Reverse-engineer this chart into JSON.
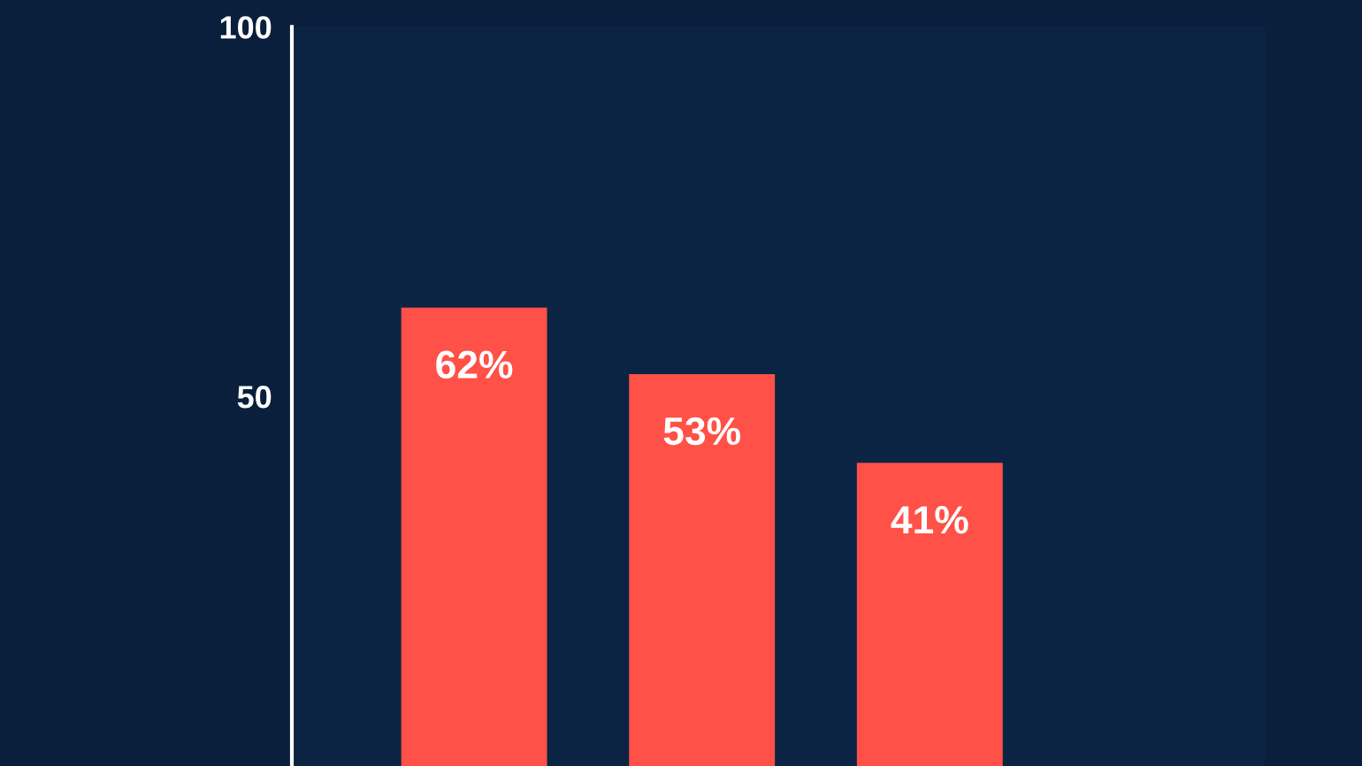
{
  "chart_data": {
    "type": "bar",
    "categories": [
      null,
      null,
      null
    ],
    "values": [
      62,
      53,
      41
    ],
    "value_labels": [
      "62%",
      "53%",
      "41%"
    ],
    "color": "#ff5147",
    "ylim": [
      0,
      100
    ],
    "yticks": [
      50,
      100
    ],
    "grid": false,
    "legend": false,
    "tick_labels": "y"
  }
}
